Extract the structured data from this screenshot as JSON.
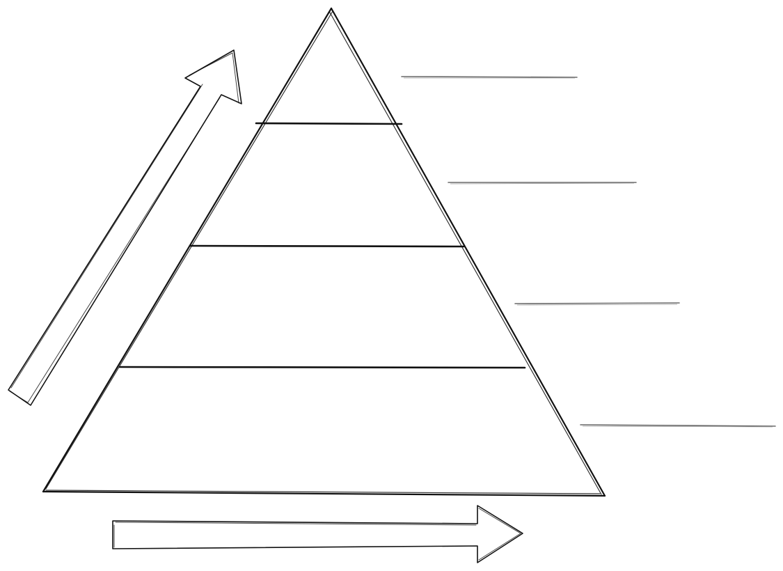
{
  "diagram": {
    "type": "pyramid",
    "tiers": [
      {
        "label": ""
      },
      {
        "label": ""
      },
      {
        "label": ""
      },
      {
        "label": ""
      }
    ],
    "answer_blanks": [
      {
        "text": ""
      },
      {
        "text": ""
      },
      {
        "text": ""
      },
      {
        "text": ""
      }
    ],
    "arrows": [
      {
        "direction": "up-right",
        "label": ""
      },
      {
        "direction": "right",
        "label": ""
      }
    ],
    "stroke_color": "#111111",
    "blank_line_color": "#6a6a6a",
    "background_color": "#ffffff"
  }
}
